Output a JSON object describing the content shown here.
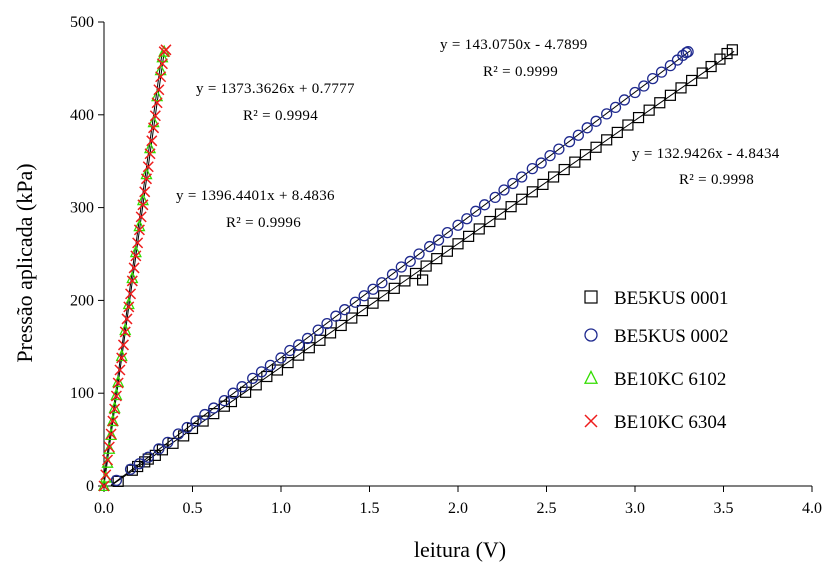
{
  "chart_data": {
    "type": "scatter",
    "xlabel": "leitura (V)",
    "ylabel": "Pressão aplicada (kPa)",
    "xlim": [
      0,
      4.0
    ],
    "ylim": [
      0,
      500
    ],
    "xticks": [
      "0.0",
      "0.5",
      "1.0",
      "1.5",
      "2.0",
      "2.5",
      "3.0",
      "3.5",
      "4.0"
    ],
    "yticks": [
      "0",
      "100",
      "200",
      "300",
      "400",
      "500"
    ],
    "grid": false,
    "legend_position": "right",
    "series": [
      {
        "name": "BE5KUS 0001",
        "marker": "square",
        "color": "#000000",
        "points": [
          [
            0.08,
            5
          ],
          [
            0.16,
            17
          ],
          [
            0.19,
            21
          ],
          [
            0.23,
            26
          ],
          [
            0.25,
            29
          ],
          [
            0.29,
            33
          ],
          [
            0.33,
            39
          ],
          [
            0.39,
            46
          ],
          [
            0.45,
            54
          ],
          [
            0.5,
            62
          ],
          [
            0.56,
            70
          ],
          [
            0.62,
            78
          ],
          [
            0.68,
            86
          ],
          [
            0.72,
            91
          ],
          [
            0.8,
            101
          ],
          [
            0.86,
            109
          ],
          [
            0.92,
            118
          ],
          [
            0.98,
            125
          ],
          [
            1.04,
            133
          ],
          [
            1.1,
            141
          ],
          [
            1.16,
            149
          ],
          [
            1.22,
            157
          ],
          [
            1.28,
            165
          ],
          [
            1.34,
            173
          ],
          [
            1.4,
            181
          ],
          [
            1.46,
            189
          ],
          [
            1.52,
            197
          ],
          [
            1.58,
            205
          ],
          [
            1.64,
            213
          ],
          [
            1.7,
            221
          ],
          [
            1.76,
            229
          ],
          [
            1.8,
            222
          ],
          [
            1.82,
            237
          ],
          [
            1.88,
            245
          ],
          [
            1.94,
            253
          ],
          [
            2.0,
            261
          ],
          [
            2.06,
            269
          ],
          [
            2.12,
            277
          ],
          [
            2.18,
            285
          ],
          [
            2.24,
            293
          ],
          [
            2.3,
            301
          ],
          [
            2.36,
            309
          ],
          [
            2.42,
            317
          ],
          [
            2.48,
            325
          ],
          [
            2.54,
            333
          ],
          [
            2.6,
            341
          ],
          [
            2.66,
            349
          ],
          [
            2.72,
            357
          ],
          [
            2.78,
            365
          ],
          [
            2.84,
            373
          ],
          [
            2.9,
            381
          ],
          [
            2.96,
            389
          ],
          [
            3.02,
            397
          ],
          [
            3.08,
            405
          ],
          [
            3.14,
            413
          ],
          [
            3.2,
            421
          ],
          [
            3.26,
            429
          ],
          [
            3.32,
            437
          ],
          [
            3.38,
            445
          ],
          [
            3.43,
            452
          ],
          [
            3.48,
            460
          ],
          [
            3.52,
            466
          ],
          [
            3.55,
            470
          ]
        ],
        "trendline": {
          "equation": "y = 132.9426x - 4.8434",
          "r2": "R² = 0.9998",
          "slope": 132.9426,
          "intercept": -4.8434,
          "x_range": [
            0.04,
            3.56
          ]
        }
      },
      {
        "name": "BE5KUS 0002",
        "marker": "circle",
        "color": "#1f2a8f",
        "points": [
          [
            0.07,
            6
          ],
          [
            0.15,
            18
          ],
          [
            0.2,
            24
          ],
          [
            0.25,
            31
          ],
          [
            0.31,
            40
          ],
          [
            0.36,
            47
          ],
          [
            0.42,
            56
          ],
          [
            0.47,
            63
          ],
          [
            0.52,
            70
          ],
          [
            0.57,
            77
          ],
          [
            0.62,
            84
          ],
          [
            0.68,
            92
          ],
          [
            0.73,
            100
          ],
          [
            0.78,
            107
          ],
          [
            0.84,
            116
          ],
          [
            0.89,
            123
          ],
          [
            0.94,
            130
          ],
          [
            1.0,
            138
          ],
          [
            1.05,
            146
          ],
          [
            1.1,
            152
          ],
          [
            1.15,
            159
          ],
          [
            1.21,
            168
          ],
          [
            1.26,
            175
          ],
          [
            1.31,
            183
          ],
          [
            1.36,
            190
          ],
          [
            1.42,
            198
          ],
          [
            1.47,
            205
          ],
          [
            1.52,
            212
          ],
          [
            1.57,
            219
          ],
          [
            1.63,
            228
          ],
          [
            1.68,
            236
          ],
          [
            1.73,
            242
          ],
          [
            1.78,
            250
          ],
          [
            1.84,
            258
          ],
          [
            1.89,
            265
          ],
          [
            1.94,
            273
          ],
          [
            2.0,
            281
          ],
          [
            2.05,
            288
          ],
          [
            2.1,
            296
          ],
          [
            2.15,
            303
          ],
          [
            2.21,
            311
          ],
          [
            2.26,
            319
          ],
          [
            2.31,
            326
          ],
          [
            2.36,
            333
          ],
          [
            2.42,
            342
          ],
          [
            2.47,
            348
          ],
          [
            2.52,
            356
          ],
          [
            2.57,
            363
          ],
          [
            2.63,
            371
          ],
          [
            2.68,
            378
          ],
          [
            2.73,
            386
          ],
          [
            2.78,
            393
          ],
          [
            2.84,
            401
          ],
          [
            2.89,
            408
          ],
          [
            2.94,
            416
          ],
          [
            3.0,
            424
          ],
          [
            3.05,
            431
          ],
          [
            3.1,
            439
          ],
          [
            3.15,
            446
          ],
          [
            3.2,
            453
          ],
          [
            3.24,
            459
          ],
          [
            3.27,
            464
          ],
          [
            3.29,
            467
          ],
          [
            3.3,
            468
          ]
        ],
        "trendline": {
          "equation": "y = 143.0750x - 4.7899",
          "r2": "R² = 0.9999",
          "slope": 143.075,
          "intercept": -4.7899,
          "x_range": [
            0.04,
            3.31
          ]
        }
      },
      {
        "name": "BE10KC 6102",
        "marker": "triangle",
        "color": "#33dd00",
        "points": [
          [
            0.0,
            0
          ],
          [
            0.01,
            9
          ],
          [
            0.02,
            25
          ],
          [
            0.03,
            40
          ],
          [
            0.04,
            55
          ],
          [
            0.05,
            70
          ],
          [
            0.06,
            84
          ],
          [
            0.07,
            98
          ],
          [
            0.08,
            112
          ],
          [
            0.1,
            140
          ],
          [
            0.12,
            168
          ],
          [
            0.14,
            196
          ],
          [
            0.16,
            224
          ],
          [
            0.18,
            252
          ],
          [
            0.2,
            280
          ],
          [
            0.22,
            308
          ],
          [
            0.24,
            336
          ],
          [
            0.26,
            364
          ],
          [
            0.28,
            392
          ],
          [
            0.3,
            420
          ],
          [
            0.32,
            448
          ],
          [
            0.33,
            462
          ],
          [
            0.34,
            468
          ]
        ],
        "trendline": {
          "equation": "y = 1396.4401x + 8.4836",
          "r2": "R² = 0.9996",
          "slope": 1396.4401,
          "intercept": 8.4836,
          "x_range": [
            0.0,
            0.33
          ]
        }
      },
      {
        "name": "BE10KC 6304",
        "marker": "x",
        "color": "#ee1c1c",
        "points": [
          [
            0.0,
            0
          ],
          [
            0.01,
            12
          ],
          [
            0.02,
            28
          ],
          [
            0.03,
            42
          ],
          [
            0.04,
            56
          ],
          [
            0.05,
            70
          ],
          [
            0.06,
            83
          ],
          [
            0.07,
            97
          ],
          [
            0.08,
            111
          ],
          [
            0.09,
            125
          ],
          [
            0.1,
            138
          ],
          [
            0.11,
            152
          ],
          [
            0.12,
            166
          ],
          [
            0.13,
            180
          ],
          [
            0.14,
            193
          ],
          [
            0.15,
            207
          ],
          [
            0.16,
            221
          ],
          [
            0.17,
            235
          ],
          [
            0.18,
            248
          ],
          [
            0.19,
            262
          ],
          [
            0.2,
            276
          ],
          [
            0.21,
            290
          ],
          [
            0.22,
            303
          ],
          [
            0.23,
            317
          ],
          [
            0.24,
            331
          ],
          [
            0.25,
            344
          ],
          [
            0.26,
            358
          ],
          [
            0.27,
            372
          ],
          [
            0.28,
            386
          ],
          [
            0.29,
            399
          ],
          [
            0.3,
            413
          ],
          [
            0.31,
            427
          ],
          [
            0.32,
            441
          ],
          [
            0.33,
            455
          ],
          [
            0.34,
            468
          ],
          [
            0.35,
            470
          ]
        ],
        "trendline": {
          "equation": "y = 1373.3626x + 0.7777",
          "r2": "R² = 0.9994",
          "slope": 1373.3626,
          "intercept": 0.7777,
          "x_range": [
            0.0,
            0.34
          ]
        }
      }
    ]
  }
}
